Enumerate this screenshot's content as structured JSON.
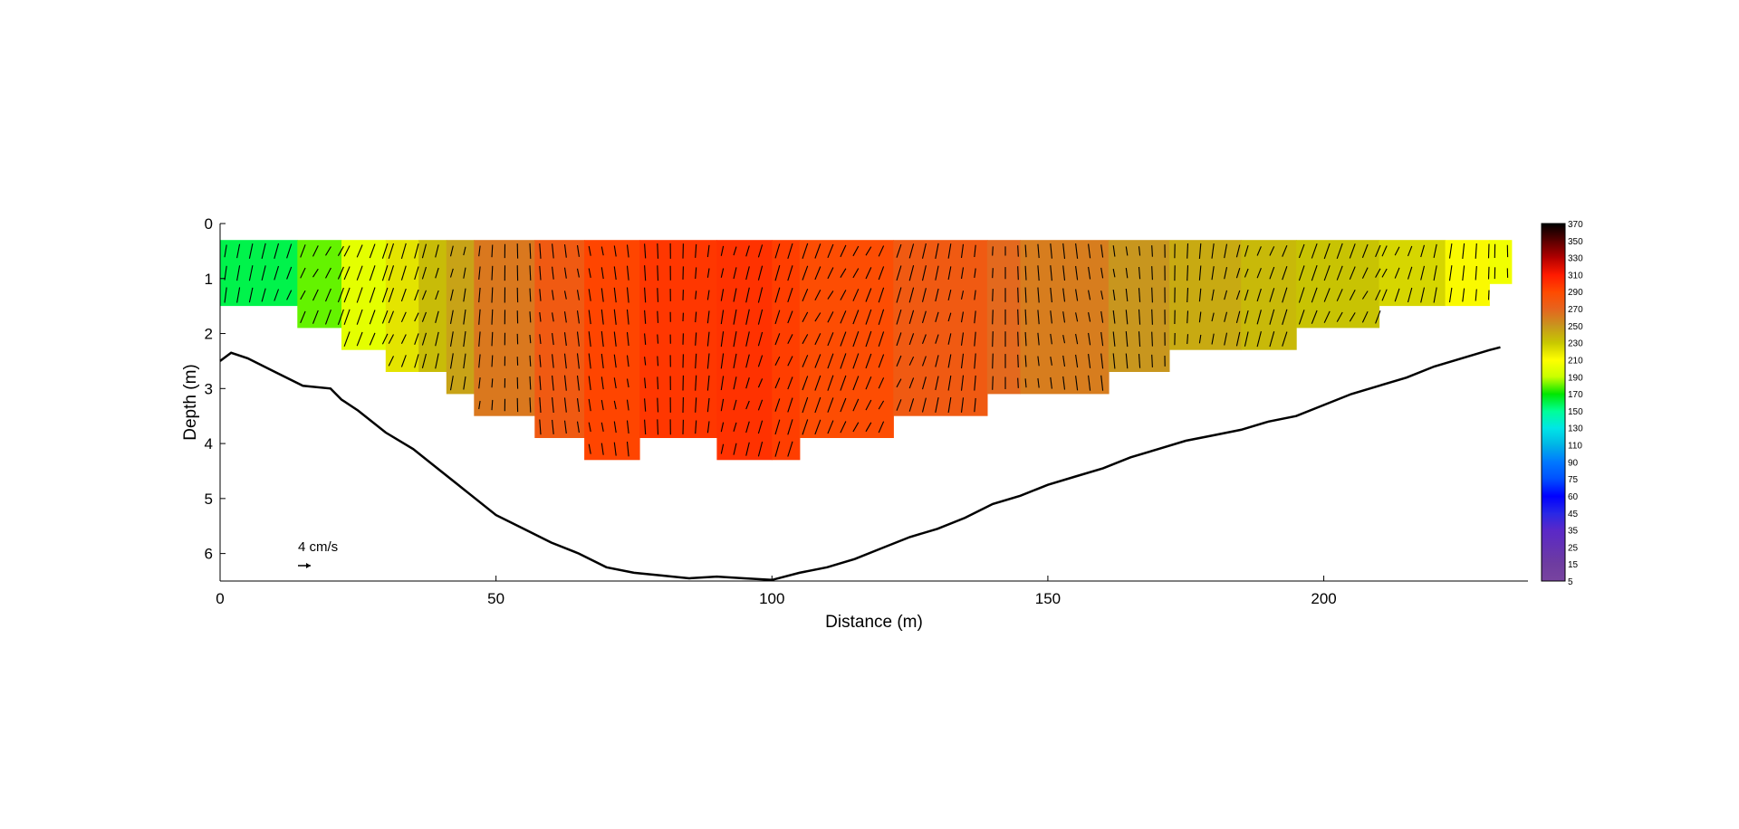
{
  "chart_data": {
    "type": "heatmap",
    "xlabel": "Distance (m)",
    "ylabel": "Depth (m)",
    "xlim": [
      0,
      237
    ],
    "ylim": [
      0,
      6.5
    ],
    "y_inverted": true,
    "xticks": [
      0,
      50,
      100,
      150,
      200
    ],
    "yticks": [
      0,
      1,
      2,
      3,
      4,
      5,
      6
    ],
    "colorbar": {
      "ticks": [
        370,
        350,
        330,
        310,
        290,
        270,
        250,
        230,
        210,
        190,
        170,
        150,
        130,
        110,
        90,
        75,
        60,
        45,
        35,
        25,
        15,
        5
      ],
      "colors": [
        "#000000",
        "#5a0000",
        "#b20000",
        "#ff1a00",
        "#ff4a00",
        "#e6641e",
        "#c8961e",
        "#c8c800",
        "#ffff00",
        "#c8ff00",
        "#00e600",
        "#00ff96",
        "#00e6e6",
        "#00b4e6",
        "#0078ff",
        "#0050ff",
        "#0000ff",
        "#2828e6",
        "#5a28c8",
        "#6432b4",
        "#6e3ca0",
        "#7844a0"
      ]
    },
    "reference_vector": {
      "label": "4 cm/s",
      "value": 4
    },
    "data_columns": [
      {
        "x0": 0,
        "x1": 14,
        "bottom": 1.5,
        "value": 160
      },
      {
        "x0": 14,
        "x1": 22,
        "bottom": 1.9,
        "value": 180
      },
      {
        "x0": 22,
        "x1": 30,
        "bottom": 2.3,
        "value": 200
      },
      {
        "x0": 30,
        "x1": 36,
        "bottom": 2.7,
        "value": 220
      },
      {
        "x0": 36,
        "x1": 41,
        "bottom": 2.7,
        "value": 235
      },
      {
        "x0": 41,
        "x1": 46,
        "bottom": 3.1,
        "value": 245
      },
      {
        "x0": 46,
        "x1": 57,
        "bottom": 3.5,
        "value": 262
      },
      {
        "x0": 57,
        "x1": 66,
        "bottom": 3.9,
        "value": 278
      },
      {
        "x0": 66,
        "x1": 76,
        "bottom": 4.3,
        "value": 292
      },
      {
        "x0": 76,
        "x1": 90,
        "bottom": 3.9,
        "value": 298
      },
      {
        "x0": 90,
        "x1": 100,
        "bottom": 4.3,
        "value": 300
      },
      {
        "x0": 100,
        "x1": 105,
        "bottom": 4.3,
        "value": 295
      },
      {
        "x0": 105,
        "x1": 122,
        "bottom": 3.9,
        "value": 288
      },
      {
        "x0": 122,
        "x1": 139,
        "bottom": 3.5,
        "value": 278
      },
      {
        "x0": 139,
        "x1": 145,
        "bottom": 3.1,
        "value": 268
      },
      {
        "x0": 145,
        "x1": 161,
        "bottom": 3.1,
        "value": 260
      },
      {
        "x0": 161,
        "x1": 172,
        "bottom": 2.7,
        "value": 250
      },
      {
        "x0": 172,
        "x1": 185,
        "bottom": 2.3,
        "value": 242
      },
      {
        "x0": 185,
        "x1": 195,
        "bottom": 2.3,
        "value": 236
      },
      {
        "x0": 195,
        "x1": 210,
        "bottom": 1.9,
        "value": 232
      },
      {
        "x0": 210,
        "x1": 222,
        "bottom": 1.5,
        "value": 225
      },
      {
        "x0": 222,
        "x1": 230,
        "bottom": 1.5,
        "value": 212
      },
      {
        "x0": 230,
        "x1": 234,
        "bottom": 1.1,
        "value": 205
      }
    ],
    "data_top_depth": 0.3,
    "bed_profile": {
      "x": [
        0,
        2,
        5,
        10,
        15,
        20,
        22,
        25,
        30,
        35,
        40,
        45,
        50,
        55,
        60,
        65,
        70,
        75,
        80,
        85,
        90,
        95,
        100,
        105,
        110,
        115,
        120,
        125,
        130,
        135,
        140,
        145,
        150,
        155,
        160,
        165,
        170,
        175,
        180,
        185,
        190,
        195,
        200,
        205,
        210,
        215,
        220,
        225,
        230,
        232
      ],
      "depth": [
        2.5,
        2.35,
        2.45,
        2.7,
        2.95,
        3.0,
        3.2,
        3.4,
        3.8,
        4.1,
        4.5,
        4.9,
        5.3,
        5.55,
        5.8,
        6.0,
        6.25,
        6.35,
        6.4,
        6.45,
        6.42,
        6.45,
        6.48,
        6.35,
        6.25,
        6.1,
        5.9,
        5.7,
        5.55,
        5.35,
        5.1,
        4.95,
        4.75,
        4.6,
        4.45,
        4.25,
        4.1,
        3.95,
        3.85,
        3.75,
        3.6,
        3.5,
        3.3,
        3.1,
        2.95,
        2.8,
        2.6,
        2.45,
        2.3,
        2.25
      ]
    }
  }
}
